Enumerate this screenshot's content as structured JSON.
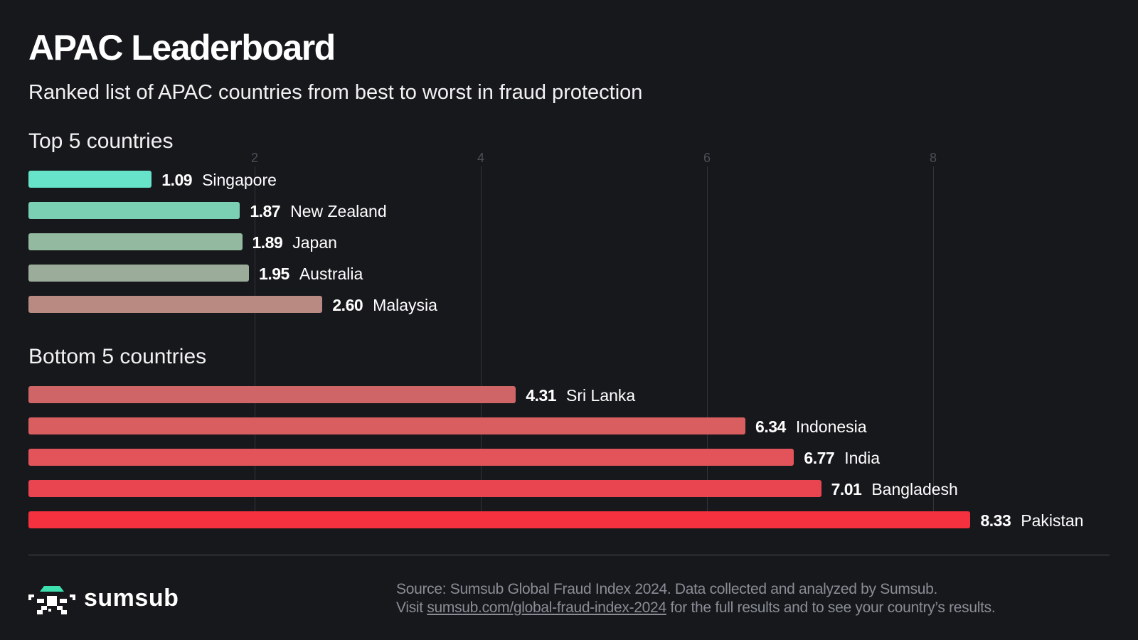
{
  "header": {
    "title": "APAC Leaderboard",
    "subtitle": "Ranked list of APAC countries from best to worst in fraud protection"
  },
  "chart_data": {
    "type": "bar",
    "orientation": "horizontal",
    "title": "APAC Leaderboard",
    "subtitle": "Ranked list of APAC countries from best to worst in fraud protection",
    "xlim": [
      0,
      8.5
    ],
    "x_ticks": [
      "2",
      "4",
      "6",
      "8"
    ],
    "x_tick_values": [
      2,
      4,
      6,
      8
    ],
    "grid": "vertical",
    "groups": [
      {
        "label": "Top 5 countries",
        "categories": [
          "Singapore",
          "New Zealand",
          "Japan",
          "Australia",
          "Malaysia"
        ],
        "values": [
          1.09,
          1.87,
          1.89,
          1.95,
          2.6
        ],
        "value_labels": [
          "1.09",
          "1.87",
          "1.89",
          "1.95",
          "2.60"
        ],
        "colors": [
          "#66e3c8",
          "#7bcfb3",
          "#93b9a1",
          "#9bac9a",
          "#b88a82"
        ]
      },
      {
        "label": "Bottom 5 countries",
        "categories": [
          "Sri Lanka",
          "Indonesia",
          "India",
          "Bangladesh",
          "Pakistan"
        ],
        "values": [
          4.31,
          6.34,
          6.77,
          7.01,
          8.33
        ],
        "value_labels": [
          "4.31",
          "6.34",
          "6.77",
          "7.01",
          "8.33"
        ],
        "colors": [
          "#cf6566",
          "#d85e60",
          "#e2535a",
          "#e84550",
          "#f5303f"
        ]
      }
    ]
  },
  "footer": {
    "logo_text": "sumsub",
    "logo_accent": "#3fe0b0",
    "source_line": "Source: Sumsub Global Fraud Index 2024. Data collected and analyzed by Sumsub.",
    "visit_prefix": "Visit ",
    "link_text": "sumsub.com/global-fraud-index-2024",
    "visit_suffix": " for the full results and to see your country’s results."
  }
}
